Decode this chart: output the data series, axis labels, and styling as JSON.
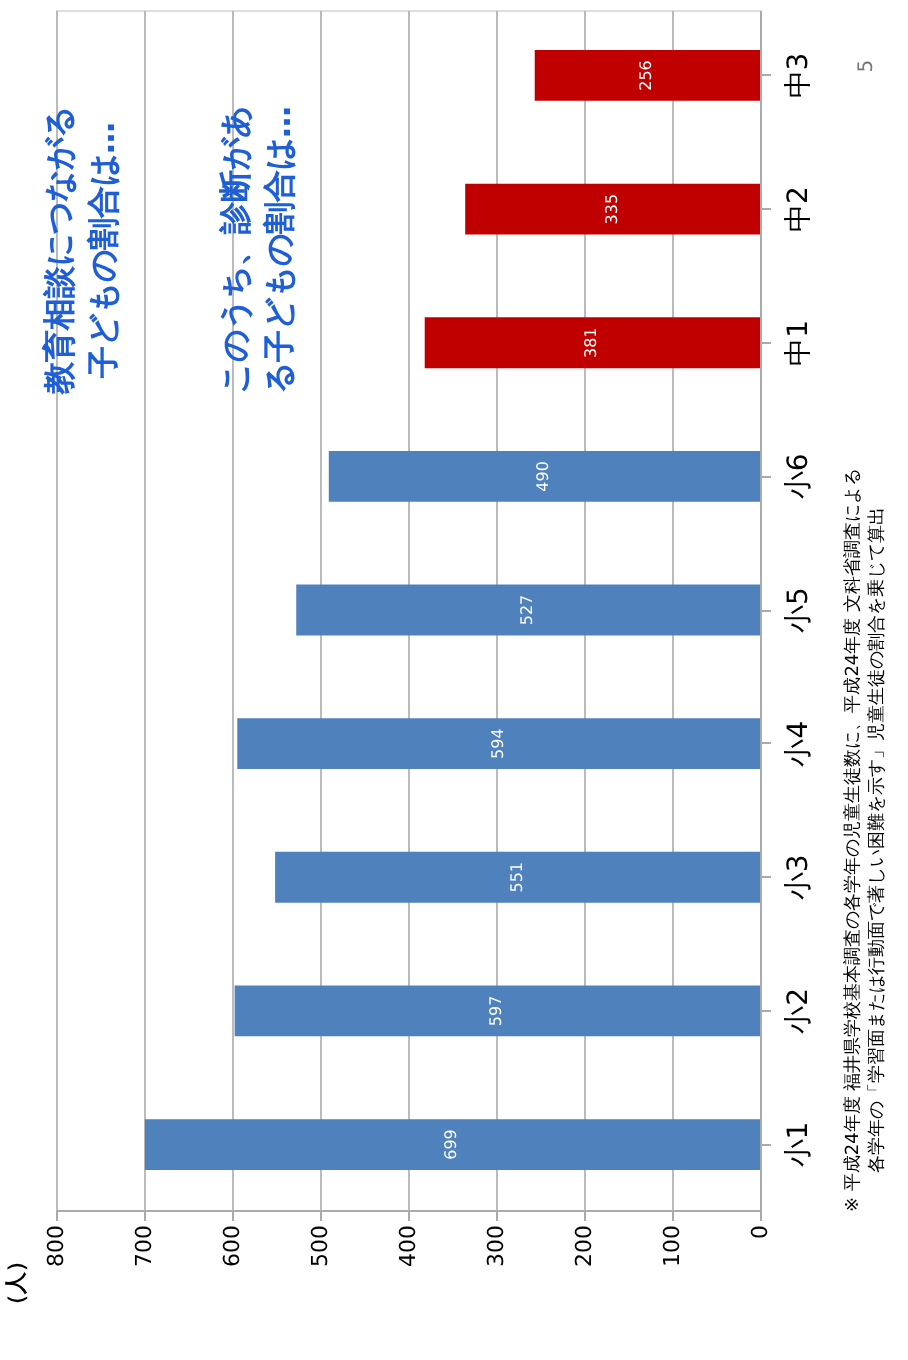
{
  "chart_data": {
    "type": "bar",
    "orientation": "horizontal",
    "ylabel": "（人）",
    "categories": [
      "中3",
      "中2",
      "中1",
      "小6",
      "小5",
      "小4",
      "小3",
      "小2",
      "小1"
    ],
    "values": [
      256,
      335,
      381,
      490,
      527,
      594,
      551,
      597,
      699
    ],
    "colors": [
      "#c00000",
      "#c00000",
      "#c00000",
      "#4f81bd",
      "#4f81bd",
      "#4f81bd",
      "#4f81bd",
      "#4f81bd",
      "#4f81bd"
    ],
    "xlim": [
      800,
      0
    ],
    "xticks": [
      0,
      100,
      200,
      300,
      400,
      500,
      600,
      700,
      800
    ],
    "grid": "x",
    "data_labels": true,
    "annotations": [
      "教育相談につながる",
      "子どもの割合は…",
      "このうち、診断があ",
      "る子どもの割合は…",
      "※ 平成24年度 福井県学校基本調査の各学年の児童生徒数に、平成24年度 文科省調査による",
      "各学年の「学習面または行動面で著しい困難を示す」児童生徒の割合を乗じて算出",
      "5"
    ]
  }
}
